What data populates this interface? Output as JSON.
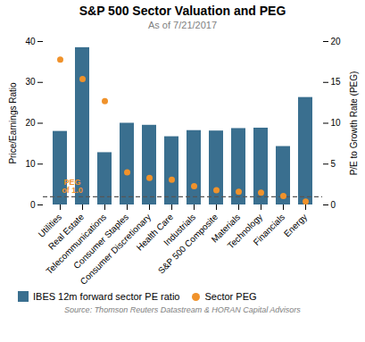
{
  "chart_data": {
    "type": "bar",
    "title": "S&P 500 Sector Valuation and PEG",
    "subtitle": "As of 7/21/2017",
    "source": "Source: Thomson Reuters Datastream & HORAN Capital Advisors",
    "categories": [
      "Utilities",
      "Real Estate",
      "Telecommunications",
      "Consumer Staples",
      "Consumer Discretionary",
      "Health Care",
      "Industrials",
      "S&P 500 Composite",
      "Materials",
      "Technology",
      "Financials",
      "Energy"
    ],
    "series": [
      {
        "name": "IBES 12m forward sector PE ratio",
        "type": "bar",
        "color": "#3a6f8f",
        "values": [
          18.0,
          38.5,
          12.8,
          20.0,
          19.5,
          16.7,
          18.2,
          18.1,
          18.7,
          18.8,
          14.3,
          26.3
        ]
      },
      {
        "name": "Sector PEG",
        "type": "scatter",
        "axis": "y2",
        "color": "#f0922b",
        "marker": "circle",
        "values": [
          17.8,
          15.4,
          12.7,
          4.0,
          3.3,
          3.1,
          2.3,
          1.8,
          1.6,
          1.5,
          1.1,
          0.4
        ]
      }
    ],
    "ylabel": "Price/Earnings Ratio",
    "y2label": "P/E to Growth Rate (PEG)",
    "ylim": [
      0,
      40
    ],
    "yticks": [
      0,
      10,
      20,
      30,
      40
    ],
    "y2lim": [
      0,
      20
    ],
    "y2ticks": [
      0,
      5,
      10,
      15,
      20
    ],
    "reference_lines": [
      {
        "y": 1.0,
        "axis": "y2",
        "color": "#555555",
        "line_style": "dashed"
      }
    ],
    "annotations": [
      {
        "text": "PEG\nof 1.0",
        "color": "#f0922b"
      }
    ],
    "legend": "lower left",
    "grid": false
  }
}
